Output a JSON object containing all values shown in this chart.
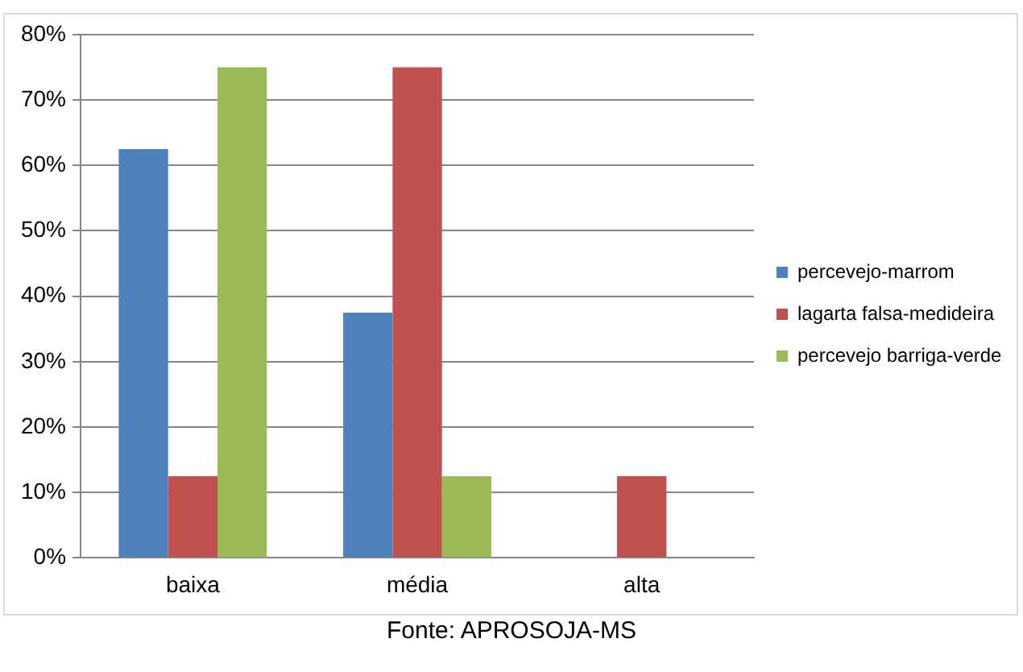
{
  "chart_data": {
    "type": "bar",
    "categories": [
      "baixa",
      "média",
      "alta"
    ],
    "series": [
      {
        "name": "percevejo-marrom",
        "color": "#4f81bd",
        "values": [
          62.5,
          37.5,
          0
        ]
      },
      {
        "name": "lagarta falsa-medideira",
        "color": "#c0504d",
        "values": [
          12.5,
          75,
          12.5
        ]
      },
      {
        "name": "percevejo barriga-verde",
        "color": "#9bbb59",
        "values": [
          75,
          12.5,
          0
        ]
      }
    ],
    "ylim": [
      0,
      80
    ],
    "yticks": [
      {
        "value": 0,
        "label": "0%"
      },
      {
        "value": 10,
        "label": "10%"
      },
      {
        "value": 20,
        "label": "20%"
      },
      {
        "value": 30,
        "label": "30%"
      },
      {
        "value": 40,
        "label": "40%"
      },
      {
        "value": 50,
        "label": "50%"
      },
      {
        "value": 60,
        "label": "60%"
      },
      {
        "value": 70,
        "label": "70%"
      },
      {
        "value": 80,
        "label": "80%"
      }
    ],
    "grid": "y",
    "legend": "right",
    "annotations": [
      "Fonte: APROSOJA-MS"
    ]
  }
}
